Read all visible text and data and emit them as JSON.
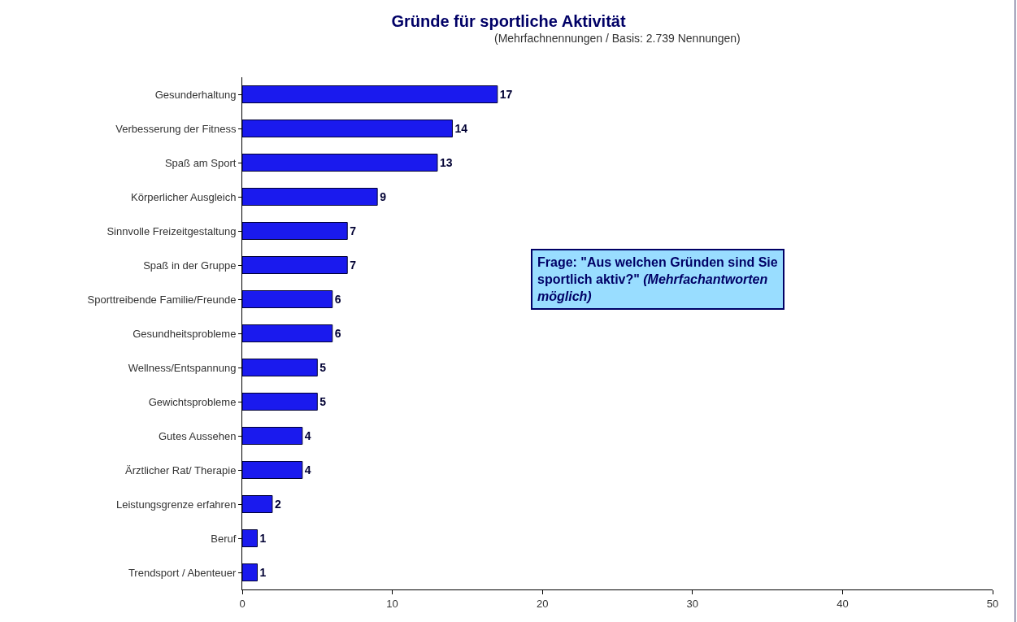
{
  "chart_data": {
    "type": "bar",
    "orientation": "horizontal",
    "title": "Gründe für sportliche Aktivität",
    "subtitle": "(Mehrfachnennungen / Basis: 2.739 Nennungen)",
    "categories": [
      "Gesunderhaltung",
      "Verbesserung der Fitness",
      "Spaß am Sport",
      "Körperlicher Ausgleich",
      "Sinnvolle Freizeitgestaltung",
      "Spaß in der Gruppe",
      "Sporttreibende Familie/Freunde",
      "Gesundheitsprobleme",
      "Wellness/Entspannung",
      "Gewichtsprobleme",
      "Gutes Aussehen",
      "Ärztlicher Rat/ Therapie",
      "Leistungsgrenze erfahren",
      "Beruf",
      "Trendsport / Abenteuer"
    ],
    "values": [
      17,
      14,
      13,
      9,
      7,
      7,
      6,
      6,
      5,
      5,
      4,
      4,
      2,
      1,
      1
    ],
    "color": "#1a1aee",
    "data_labels": true,
    "xlim": [
      0,
      50
    ],
    "xticks": [
      0,
      10,
      20,
      30,
      40,
      50
    ],
    "grid": false,
    "annotations": [
      "Frage: \"Aus welchen Gründen sind Sie sportlich aktiv?\"",
      "(Mehrfachantworten möglich)"
    ]
  }
}
